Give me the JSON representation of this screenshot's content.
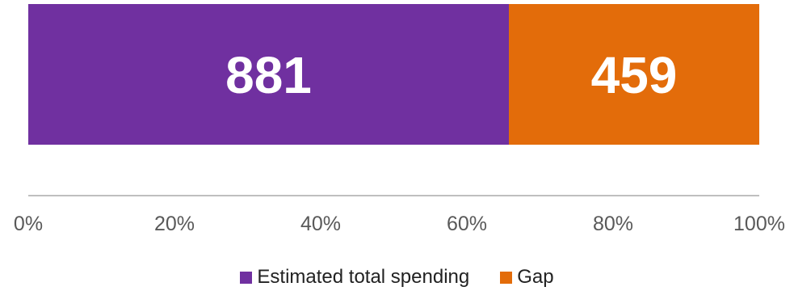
{
  "chart_data": {
    "type": "bar",
    "orientation": "horizontal",
    "stacking": "percent",
    "categories": [
      ""
    ],
    "series": [
      {
        "name": "Estimated total spending",
        "values": [
          881
        ],
        "color": "#7030A0"
      },
      {
        "name": "Gap",
        "values": [
          459
        ],
        "color": "#E36C0A"
      }
    ],
    "data_labels": [
      "881",
      "459"
    ],
    "x_ticks": [
      "0%",
      "20%",
      "40%",
      "60%",
      "80%",
      "100%"
    ],
    "xlim": [
      0,
      100
    ],
    "grid": false,
    "legend_position": "bottom"
  }
}
